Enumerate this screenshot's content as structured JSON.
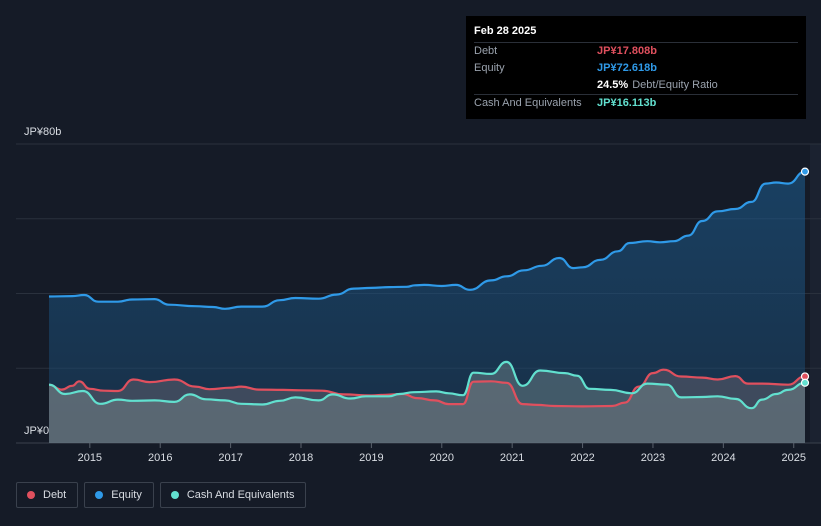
{
  "tooltip": {
    "date": "Feb 28 2025",
    "rows": [
      {
        "label": "Debt",
        "value": "JP¥17.808b",
        "color": "#e0505e"
      },
      {
        "label": "Equity",
        "value": "JP¥72.618b",
        "color": "#2f9ae8"
      },
      {
        "label": "",
        "value": "24.5%",
        "suffix": "Debt/Equity Ratio",
        "color": "#ffffff"
      },
      {
        "label": "Cash And Equivalents",
        "value": "JP¥16.113b",
        "color": "#62e0cf"
      }
    ]
  },
  "legend": [
    {
      "label": "Debt",
      "color": "#e0505e"
    },
    {
      "label": "Equity",
      "color": "#2f9ae8"
    },
    {
      "label": "Cash And Equivalents",
      "color": "#62e0cf"
    }
  ],
  "chart_data": {
    "type": "area",
    "title": "",
    "xlabel": "",
    "ylabel": "",
    "y_tick_labels": [
      "JP¥80b",
      "JP¥0"
    ],
    "ylim": [
      0,
      80
    ],
    "xlim": [
      2014.42,
      2025.16
    ],
    "x_ticks": [
      2015,
      2016,
      2017,
      2018,
      2019,
      2020,
      2021,
      2022,
      2023,
      2024,
      2025
    ],
    "x_tick_labels": [
      "2015",
      "2016",
      "2017",
      "2018",
      "2019",
      "2020",
      "2021",
      "2022",
      "2023",
      "2024",
      "2025"
    ],
    "grid": true,
    "legend_position": "bottom-left",
    "series": [
      {
        "name": "Equity",
        "color": "#2f9ae8",
        "points": [
          [
            2014.42,
            39.2
          ],
          [
            2014.75,
            39.3
          ],
          [
            2014.92,
            39.6
          ],
          [
            2015.12,
            37.8
          ],
          [
            2015.4,
            37.8
          ],
          [
            2015.6,
            38.4
          ],
          [
            2015.92,
            38.5
          ],
          [
            2016.12,
            37.0
          ],
          [
            2016.5,
            36.6
          ],
          [
            2016.75,
            36.4
          ],
          [
            2016.92,
            35.9
          ],
          [
            2017.15,
            36.5
          ],
          [
            2017.45,
            36.5
          ],
          [
            2017.7,
            38.2
          ],
          [
            2017.92,
            38.8
          ],
          [
            2018.25,
            38.6
          ],
          [
            2018.5,
            39.7
          ],
          [
            2018.75,
            41.3
          ],
          [
            2019.0,
            41.5
          ],
          [
            2019.25,
            41.7
          ],
          [
            2019.5,
            41.8
          ],
          [
            2019.62,
            42.2
          ],
          [
            2019.75,
            42.3
          ],
          [
            2020.0,
            42.0
          ],
          [
            2020.2,
            42.3
          ],
          [
            2020.4,
            41.0
          ],
          [
            2020.7,
            43.5
          ],
          [
            2020.92,
            44.6
          ],
          [
            2021.17,
            46.2
          ],
          [
            2021.42,
            47.4
          ],
          [
            2021.67,
            49.5
          ],
          [
            2021.87,
            46.8
          ],
          [
            2022.0,
            47.0
          ],
          [
            2022.25,
            49.0
          ],
          [
            2022.5,
            51.3
          ],
          [
            2022.67,
            53.5
          ],
          [
            2022.92,
            54.0
          ],
          [
            2023.1,
            53.7
          ],
          [
            2023.3,
            54.0
          ],
          [
            2023.5,
            55.5
          ],
          [
            2023.7,
            59.4
          ],
          [
            2023.92,
            62.0
          ],
          [
            2024.17,
            62.6
          ],
          [
            2024.4,
            64.5
          ],
          [
            2024.6,
            69.4
          ],
          [
            2024.75,
            69.7
          ],
          [
            2024.92,
            69.4
          ],
          [
            2025.16,
            72.618
          ]
        ]
      },
      {
        "name": "Debt",
        "color": "#e0505e",
        "points": [
          [
            2014.42,
            15.6
          ],
          [
            2014.6,
            14.3
          ],
          [
            2014.75,
            15.3
          ],
          [
            2014.85,
            16.5
          ],
          [
            2015.0,
            14.5
          ],
          [
            2015.2,
            14.0
          ],
          [
            2015.4,
            13.9
          ],
          [
            2015.62,
            17.0
          ],
          [
            2015.85,
            16.3
          ],
          [
            2016.2,
            17.0
          ],
          [
            2016.5,
            15.1
          ],
          [
            2016.7,
            14.4
          ],
          [
            2017.0,
            14.8
          ],
          [
            2017.15,
            15.1
          ],
          [
            2017.4,
            14.3
          ],
          [
            2017.75,
            14.2
          ],
          [
            2018.0,
            14.1
          ],
          [
            2018.3,
            14.0
          ],
          [
            2018.6,
            13.0
          ],
          [
            2019.0,
            12.7
          ],
          [
            2019.2,
            12.9
          ],
          [
            2019.45,
            13.1
          ],
          [
            2019.65,
            12.0
          ],
          [
            2019.9,
            11.4
          ],
          [
            2020.1,
            10.4
          ],
          [
            2020.3,
            10.4
          ],
          [
            2020.45,
            16.4
          ],
          [
            2020.7,
            16.5
          ],
          [
            2020.92,
            16.1
          ],
          [
            2021.15,
            10.4
          ],
          [
            2021.35,
            10.2
          ],
          [
            2021.6,
            9.9
          ],
          [
            2022.0,
            9.8
          ],
          [
            2022.42,
            9.9
          ],
          [
            2022.6,
            10.8
          ],
          [
            2022.8,
            15.1
          ],
          [
            2023.0,
            18.7
          ],
          [
            2023.15,
            19.6
          ],
          [
            2023.4,
            17.8
          ],
          [
            2023.7,
            17.5
          ],
          [
            2023.92,
            17.0
          ],
          [
            2024.17,
            17.9
          ],
          [
            2024.35,
            15.9
          ],
          [
            2024.55,
            15.9
          ],
          [
            2024.92,
            15.6
          ],
          [
            2025.16,
            17.808
          ]
        ]
      },
      {
        "name": "Cash And Equivalents",
        "color": "#62e0cf",
        "points": [
          [
            2014.42,
            15.6
          ],
          [
            2014.65,
            13.1
          ],
          [
            2014.9,
            13.9
          ],
          [
            2015.15,
            10.5
          ],
          [
            2015.4,
            11.6
          ],
          [
            2015.6,
            11.3
          ],
          [
            2015.92,
            11.4
          ],
          [
            2016.2,
            11.0
          ],
          [
            2016.42,
            13.0
          ],
          [
            2016.65,
            11.7
          ],
          [
            2016.92,
            11.4
          ],
          [
            2017.15,
            10.5
          ],
          [
            2017.45,
            10.3
          ],
          [
            2017.7,
            11.3
          ],
          [
            2017.92,
            12.2
          ],
          [
            2018.25,
            11.4
          ],
          [
            2018.45,
            13.0
          ],
          [
            2018.7,
            11.9
          ],
          [
            2018.92,
            12.5
          ],
          [
            2019.25,
            12.5
          ],
          [
            2019.4,
            13.1
          ],
          [
            2019.6,
            13.6
          ],
          [
            2019.92,
            13.8
          ],
          [
            2020.1,
            13.3
          ],
          [
            2020.3,
            12.8
          ],
          [
            2020.45,
            18.8
          ],
          [
            2020.7,
            18.5
          ],
          [
            2020.92,
            21.7
          ],
          [
            2021.15,
            15.3
          ],
          [
            2021.4,
            19.4
          ],
          [
            2021.75,
            18.7
          ],
          [
            2021.92,
            18.0
          ],
          [
            2022.1,
            14.5
          ],
          [
            2022.4,
            14.2
          ],
          [
            2022.7,
            13.3
          ],
          [
            2022.92,
            15.9
          ],
          [
            2023.2,
            15.6
          ],
          [
            2023.4,
            12.2
          ],
          [
            2023.7,
            12.3
          ],
          [
            2023.92,
            12.5
          ],
          [
            2024.17,
            11.8
          ],
          [
            2024.4,
            9.3
          ],
          [
            2024.55,
            11.6
          ],
          [
            2024.75,
            13.1
          ],
          [
            2024.92,
            14.2
          ],
          [
            2025.16,
            16.113
          ]
        ]
      }
    ]
  }
}
